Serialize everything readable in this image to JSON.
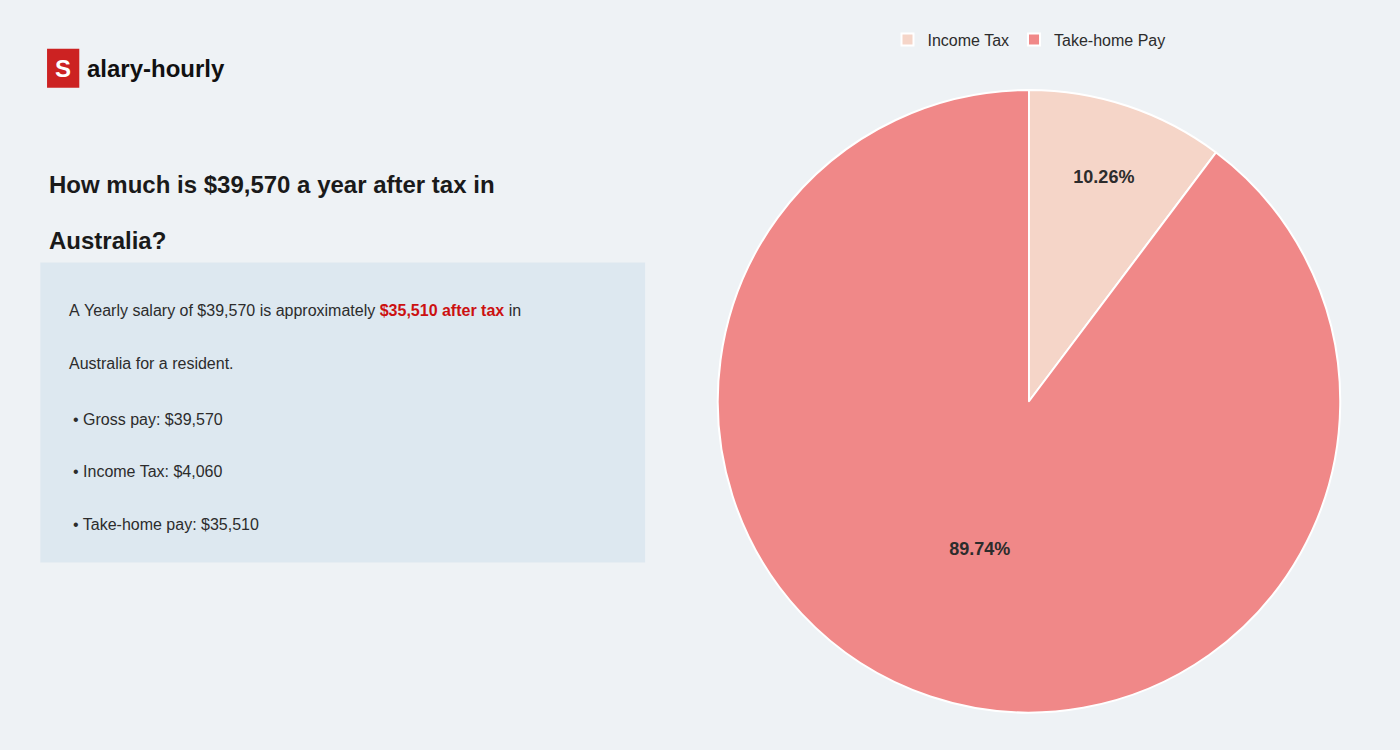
{
  "chart_data": {
    "type": "pie",
    "categories": [
      "Income Tax",
      "Take-home Pay"
    ],
    "values": [
      10.26,
      89.74
    ],
    "value_labels": [
      "10.26%",
      "89.74%"
    ],
    "colors": [
      "#f5d5c8",
      "#f08888"
    ],
    "data_labels": true,
    "legend": "top",
    "annotations": [
      "S",
      "alary-hourly",
      "How much is $39,570 a year after tax in",
      "Australia?",
      "A Yearly salary of $39,570 is approximately ",
      "$35,510 after tax",
      " in",
      "Australia for a resident.",
      "• Gross pay: $39,570",
      "• Income Tax: $4,060",
      "• Take-home pay: $35,510"
    ]
  }
}
